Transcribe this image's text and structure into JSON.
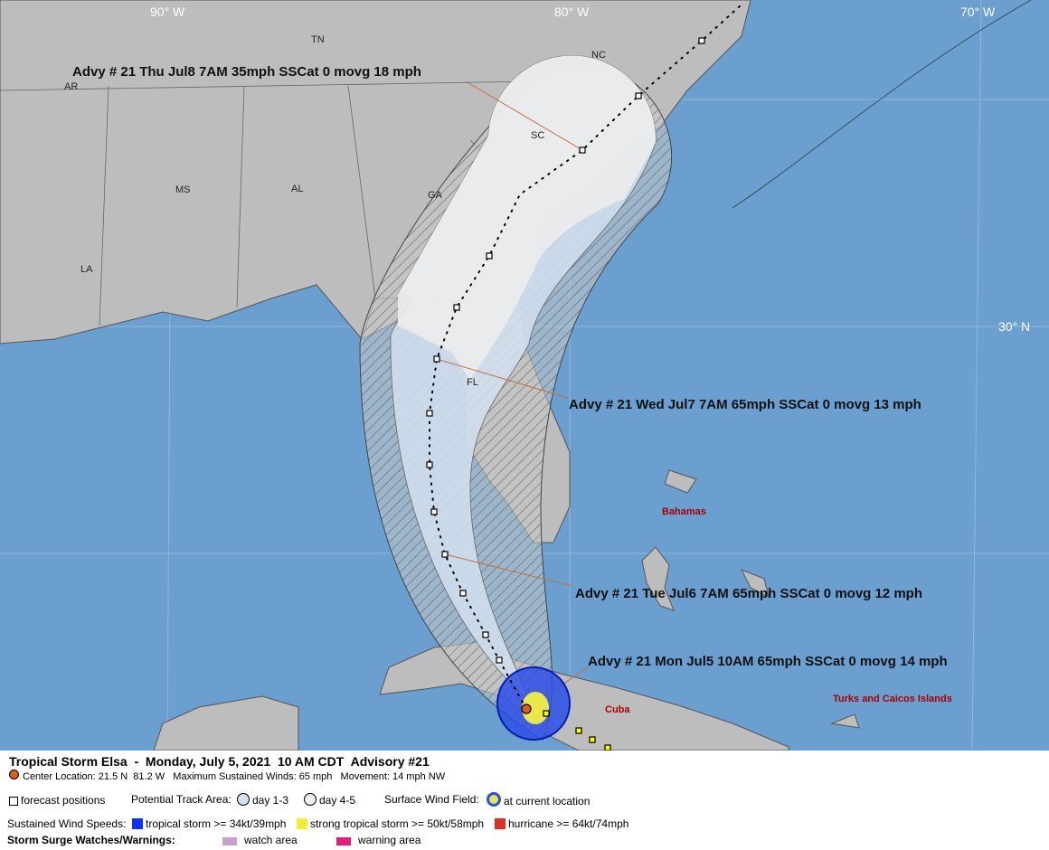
{
  "map": {
    "grid_labels": [
      "90° W",
      "80° W",
      "70° W",
      "30° N"
    ],
    "state_labels": [
      "TN",
      "NC",
      "AR",
      "SC",
      "MS",
      "AL",
      "GA",
      "LA",
      "FL"
    ],
    "country_labels": [
      "Bahamas",
      "Cuba",
      "Turks and Caicos Islands"
    ],
    "advisories": [
      "Advy # 21 Thu Jul8 7AM  35mph SSCat 0 movg 18 mph",
      "Advy # 21 Wed Jul7 7AM  65mph SSCat 0 movg 13 mph",
      "Advy # 21 Tue Jul6 7AM  65mph SSCat 0 movg 12 mph",
      "Advy # 21 Mon Jul5 10AM  65mph SSCat 0 movg 14 mph"
    ]
  },
  "legend": {
    "title": "Tropical Storm Elsa  -  Monday, July 5, 2021  10 AM CDT  Advisory #21",
    "center": "Center Location: 21.5 N  81.2 W   Maximum Sustained Winds: 65 mph   Movement: 14 mph NW",
    "forecast_positions": "forecast positions",
    "track_area": "Potential Track Area:",
    "day13": "day 1-3",
    "day45": "day 4-5",
    "wind_field": "Surface Wind Field:",
    "current": "at current location",
    "speeds": "Sustained Wind Speeds:",
    "ts": "tropical storm >= 34kt/39mph",
    "sts": "strong tropical storm >= 50kt/58mph",
    "hu": "hurricane >= 64kt/74mph",
    "surge": "Storm Surge Watches/Warnings:",
    "watch": "watch area",
    "warning": "warning area"
  }
}
